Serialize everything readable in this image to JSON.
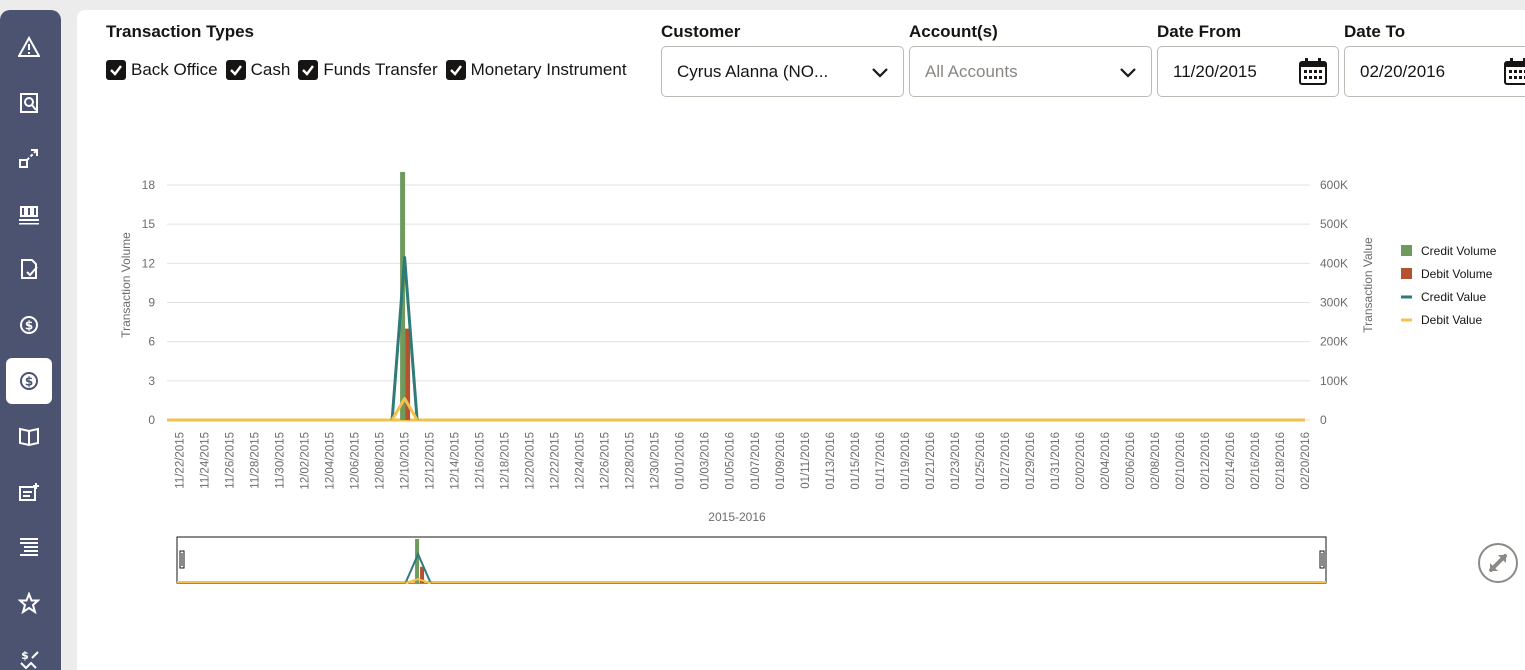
{
  "filters": {
    "transaction_types_label": "Transaction Types",
    "types": [
      {
        "label": "Back Office",
        "checked": true
      },
      {
        "label": "Cash",
        "checked": true
      },
      {
        "label": "Funds Transfer",
        "checked": true
      },
      {
        "label": "Monetary Instrument",
        "checked": true
      }
    ],
    "customer_label": "Customer",
    "customer_value": "Cyrus Alanna (NO...",
    "accounts_label": "Account(s)",
    "accounts_placeholder": "All Accounts",
    "date_from_label": "Date From",
    "date_from_value": "11/20/2015",
    "date_to_label": "Date To",
    "date_to_value": "02/20/2016"
  },
  "rail": {
    "icons": [
      "alert-icon",
      "search-profile-icon",
      "link-analysis-icon",
      "org-chart-icon",
      "document-check-icon",
      "currency-cycle-icon",
      "currency-exchange-icon",
      "book-icon",
      "add-event-icon",
      "list-icon",
      "network-star-icon",
      "money-transfer-icon"
    ],
    "active_index": 6
  },
  "colors": {
    "credit_volume": "#6f9a5e",
    "debit_volume": "#b4512e",
    "credit_value": "#2e7b78",
    "debit_value": "#f2c24d"
  },
  "chart_data": {
    "type": "bar",
    "xlabel": "2015-2016",
    "ylabel_left": "Transaction Volume",
    "ylabel_right": "Transaction Value",
    "y_left_ticks": [
      "0",
      "3",
      "6",
      "9",
      "12",
      "15",
      "18"
    ],
    "y_right_ticks": [
      "0",
      "100K",
      "200K",
      "300K",
      "400K",
      "500K",
      "600K"
    ],
    "ylim_left": [
      0,
      19
    ],
    "ylim_right": [
      0,
      633333
    ],
    "x_tick_labels": [
      "11/22/2015",
      "11/24/2015",
      "11/26/2015",
      "11/28/2015",
      "11/30/2015",
      "12/02/2015",
      "12/04/2015",
      "12/06/2015",
      "12/08/2015",
      "12/10/2015",
      "12/12/2015",
      "12/14/2015",
      "12/16/2015",
      "12/18/2015",
      "12/20/2015",
      "12/22/2015",
      "12/24/2015",
      "12/26/2015",
      "12/28/2015",
      "12/30/2015",
      "01/01/2016",
      "01/03/2016",
      "01/05/2016",
      "01/07/2016",
      "01/09/2016",
      "01/11/2016",
      "01/13/2016",
      "01/15/2016",
      "01/17/2016",
      "01/19/2016",
      "01/21/2016",
      "01/23/2016",
      "01/25/2016",
      "01/27/2016",
      "01/29/2016",
      "01/31/2016",
      "02/02/2016",
      "02/04/2016",
      "02/06/2016",
      "02/08/2016",
      "02/10/2016",
      "02/12/2016",
      "02/14/2016",
      "02/16/2016",
      "02/18/2016",
      "02/20/2016"
    ],
    "date_start": "11/21/2015",
    "date_end": "02/20/2016",
    "legend_position": "right",
    "series": [
      {
        "name": "Credit Volume",
        "kind": "bar",
        "axis": "left",
        "points": [
          {
            "x": "12/10/2015",
            "y": 19
          }
        ]
      },
      {
        "name": "Debit Volume",
        "kind": "bar",
        "axis": "left",
        "points": [
          {
            "x": "12/10/2015",
            "y": 7
          }
        ]
      },
      {
        "name": "Credit Value",
        "kind": "line",
        "axis": "right",
        "points": [
          {
            "x": "12/09/2015",
            "y": 0
          },
          {
            "x": "12/10/2015",
            "y": 415000
          },
          {
            "x": "12/11/2015",
            "y": 0
          }
        ]
      },
      {
        "name": "Debit Value",
        "kind": "line",
        "axis": "right",
        "points": [
          {
            "x": "12/09/2015",
            "y": 0
          },
          {
            "x": "12/10/2015",
            "y": 55000
          },
          {
            "x": "12/11/2015",
            "y": 0
          }
        ]
      }
    ]
  }
}
